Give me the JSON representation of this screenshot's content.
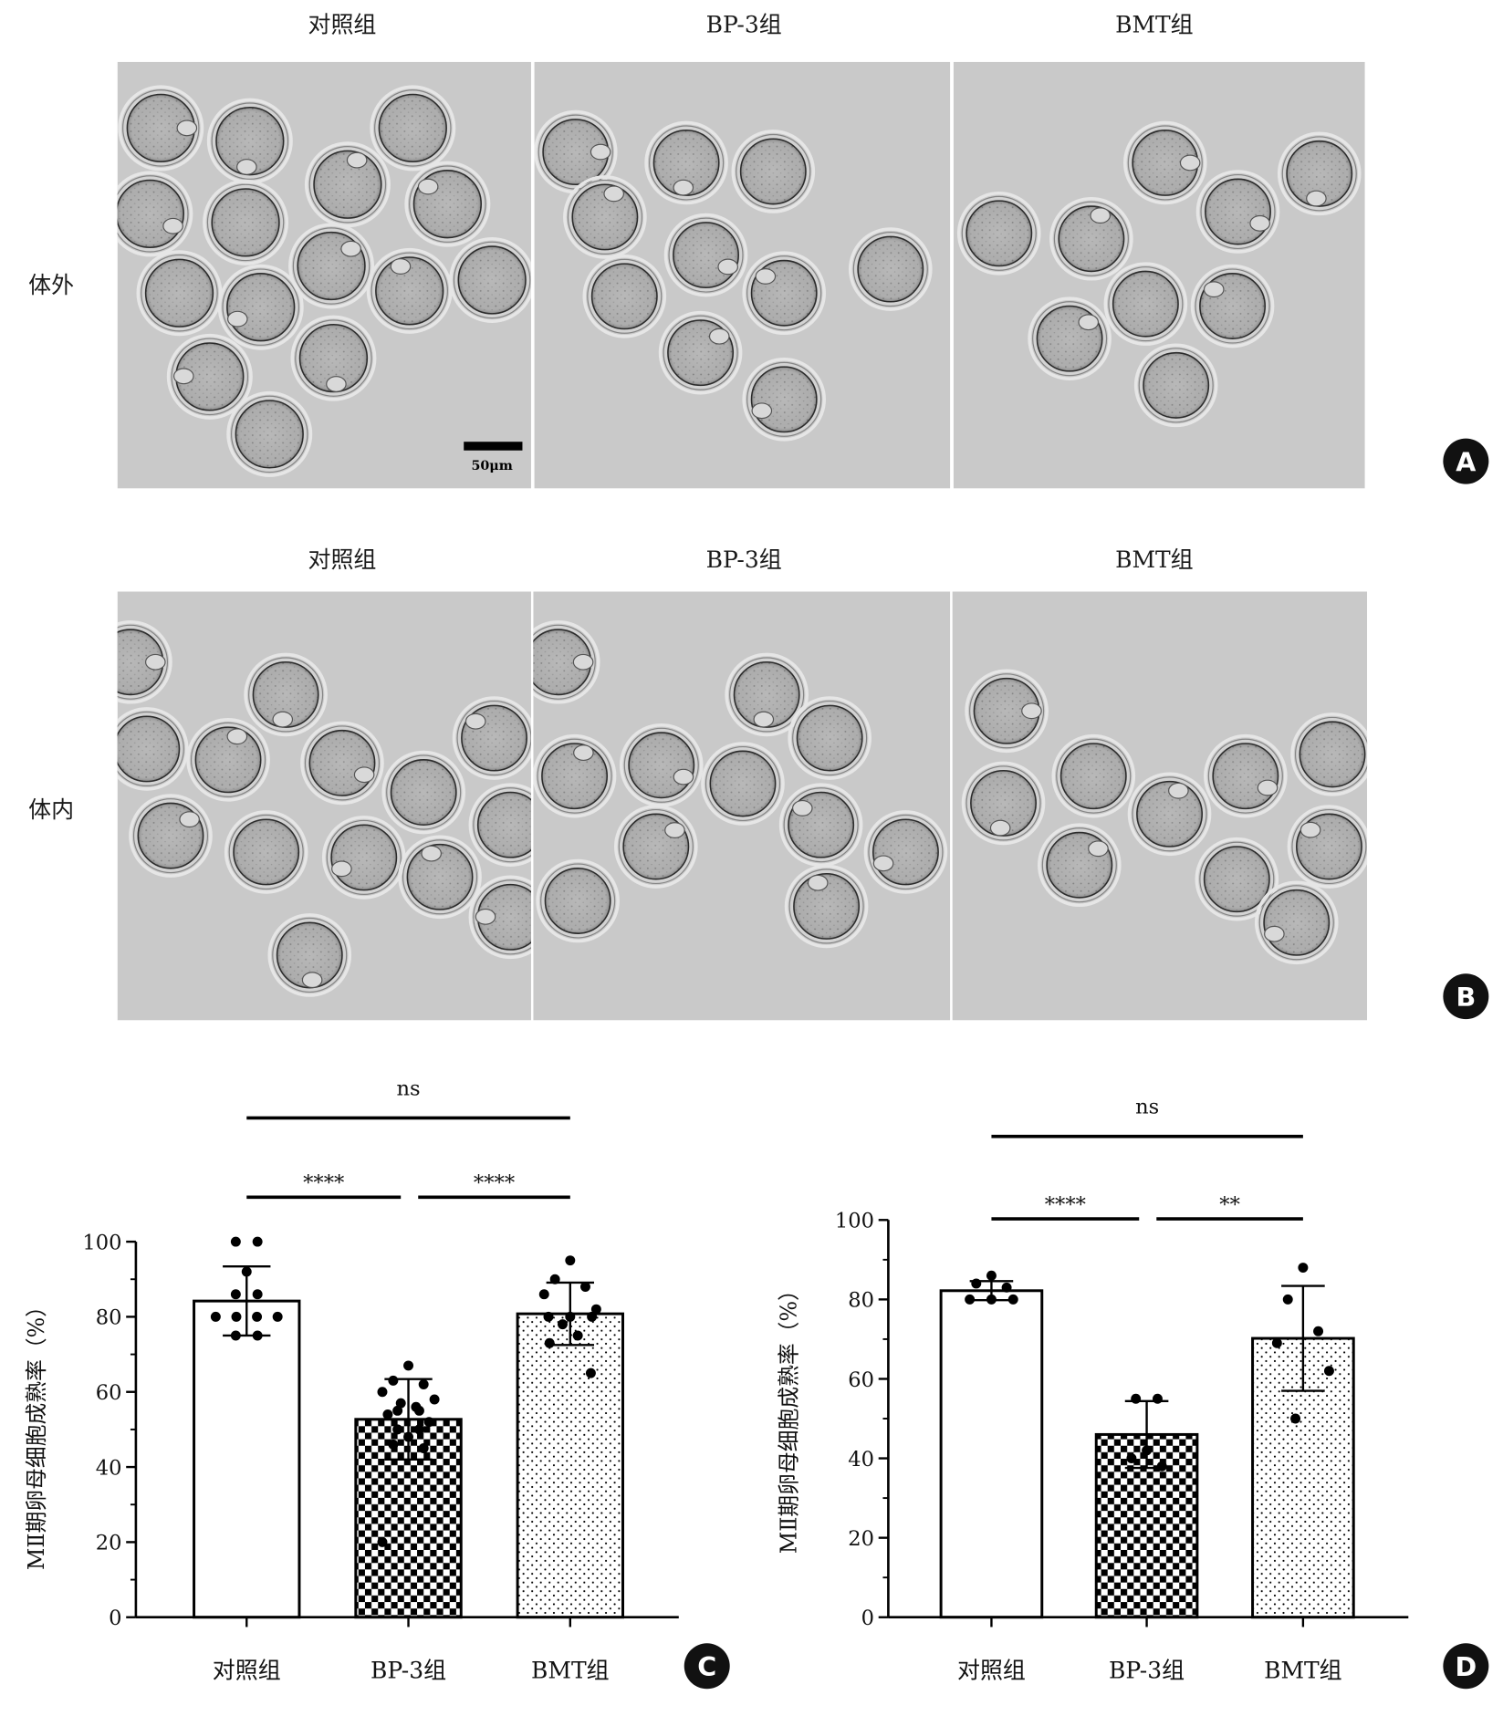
{
  "figure_panels": {
    "in_vitro": {
      "label": "A",
      "row_label": "体外",
      "columns": [
        "对照组",
        "BP-3组",
        "BMT组"
      ],
      "scale_bar_label": "50μm"
    },
    "in_vivo": {
      "label": "B",
      "row_label": "体内",
      "columns": [
        "对照组",
        "BP-3组",
        "BMT组"
      ]
    }
  },
  "colors": {
    "micrograph": "#c9c9c9",
    "bar_edge": "#000000",
    "badge": "#111111"
  },
  "chart_data": [
    {
      "panel": "C",
      "type": "bar",
      "ylabel": "MⅡ期卵母细胞成熟率（%）",
      "ylim": [
        0,
        100
      ],
      "yticks": [
        0,
        20,
        40,
        60,
        80,
        100
      ],
      "categories": [
        "对照组",
        "BP-3组",
        "BMT组"
      ],
      "values": [
        84.2,
        52.7,
        80.8
      ],
      "error_sd": [
        9.2,
        10.7,
        8.3
      ],
      "points": [
        [
          100,
          100,
          92,
          86,
          86,
          80,
          80,
          80,
          80,
          75,
          75
        ],
        [
          67,
          63,
          62,
          60,
          58,
          57,
          56,
          55,
          55,
          54,
          52,
          50,
          50,
          48,
          46,
          45,
          20
        ],
        [
          95,
          90,
          88,
          86,
          82,
          80,
          80,
          80,
          78,
          75,
          73,
          65
        ]
      ],
      "significance": [
        {
          "between": [
            0,
            1
          ],
          "label": "****"
        },
        {
          "between": [
            1,
            2
          ],
          "label": "****"
        },
        {
          "between": [
            0,
            2
          ],
          "label": "ns"
        }
      ]
    },
    {
      "panel": "D",
      "type": "bar",
      "ylabel": "MⅡ期卵母细胞成熟率（%）",
      "ylim": [
        0,
        100
      ],
      "yticks": [
        0,
        20,
        40,
        60,
        80,
        100
      ],
      "categories": [
        "对照组",
        "BP-3组",
        "BMT组"
      ],
      "values": [
        82.2,
        46.0,
        70.2
      ],
      "error_sd": [
        2.4,
        8.4,
        13.2
      ],
      "points": [
        [
          86,
          84,
          83,
          80,
          80,
          80
        ],
        [
          55,
          55,
          42,
          40,
          38
        ],
        [
          88,
          80,
          72,
          69,
          62,
          50
        ]
      ],
      "significance": [
        {
          "between": [
            0,
            1
          ],
          "label": "****"
        },
        {
          "between": [
            1,
            2
          ],
          "label": "**"
        },
        {
          "between": [
            0,
            2
          ],
          "label": "ns"
        }
      ]
    }
  ]
}
